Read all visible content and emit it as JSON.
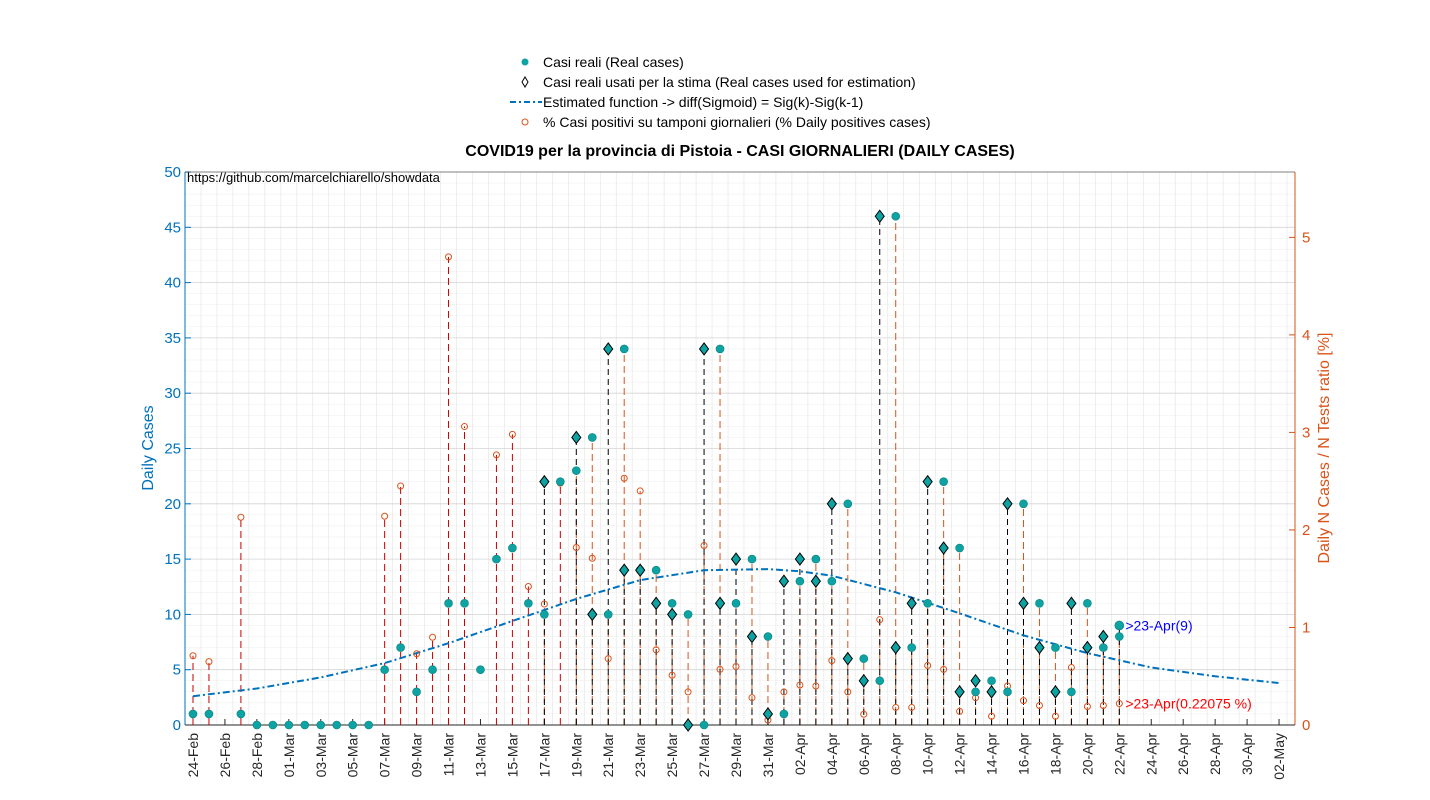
{
  "chart_data": {
    "type": "scatter",
    "title": "COVID19 per la provincia di Pistoia - CASI GIORNALIERI (DAILY CASES)",
    "watermark": "https://github.com/marcelchiarello/showdata",
    "ylabel_left": "Daily Cases",
    "ylabel_right": "Daily N Cases / N Tests ratio [%]",
    "xlabel": "",
    "ylim_left": [
      0,
      50
    ],
    "ylim_right": [
      0,
      5.67
    ],
    "yticks_left": [
      "0",
      "5",
      "10",
      "15",
      "20",
      "25",
      "30",
      "35",
      "40",
      "45",
      "50"
    ],
    "yticks_right": [
      "0",
      "1",
      "2",
      "3",
      "4",
      "5"
    ],
    "x_tick_labels": [
      "24-Feb",
      "26-Feb",
      "28-Feb",
      "01-Mar",
      "03-Mar",
      "05-Mar",
      "07-Mar",
      "09-Mar",
      "11-Mar",
      "13-Mar",
      "15-Mar",
      "17-Mar",
      "19-Mar",
      "21-Mar",
      "23-Mar",
      "25-Mar",
      "27-Mar",
      "29-Mar",
      "31-Mar",
      "02-Apr",
      "04-Apr",
      "06-Apr",
      "08-Apr",
      "10-Apr",
      "12-Apr",
      "14-Apr",
      "16-Apr",
      "18-Apr",
      "20-Apr",
      "22-Apr",
      "24-Apr",
      "26-Apr",
      "28-Apr",
      "30-Apr",
      "02-May"
    ],
    "grid": true,
    "legend_position": "top",
    "colors": {
      "real": "#0DA3A3",
      "estimate_line": "#0072BD",
      "left_axis": "#0072BD",
      "right_axis": "#D95319",
      "ratio_marker": "#D95319",
      "annotation_forecast": "#0000FF",
      "annotation_ratio": "#FF0000"
    },
    "legend": [
      {
        "marker": "filled-circle",
        "label": "Casi reali (Real cases)"
      },
      {
        "marker": "diamond",
        "label": "Casi reali usati per la stima (Real cases used for estimation)"
      },
      {
        "marker": "dash-dot-line",
        "label": "Estimated function -> diff(Sigmoid) = Sig(k)-Sig(k-1)"
      },
      {
        "marker": "open-circle",
        "label": "% Casi positivi su tamponi giornalieri (% Daily positives cases)"
      }
    ],
    "annotations": {
      "forecast": ">23-Apr(9)",
      "ratio": ">23-Apr(0.22075 %)"
    },
    "series": [
      {
        "name": "Casi reali (Real cases)",
        "x_day_index": [
          0,
          1,
          3,
          4,
          5,
          6,
          7,
          8,
          9,
          10,
          11,
          12,
          13,
          14,
          15,
          16,
          17,
          18,
          19,
          20,
          21,
          22,
          23,
          24,
          25,
          26,
          27,
          28,
          29,
          30,
          31,
          32,
          33,
          34,
          35,
          36,
          37,
          38,
          39,
          40,
          41,
          42,
          43,
          44,
          45,
          46,
          47,
          48,
          49,
          50,
          51,
          52,
          53,
          54,
          55,
          56,
          57,
          58
        ],
        "values": [
          1,
          1,
          1,
          0,
          0,
          0,
          0,
          0,
          0,
          0,
          0,
          5,
          7,
          3,
          5,
          11,
          11,
          5,
          15,
          16,
          11,
          10,
          22,
          23,
          26,
          10,
          34,
          14,
          14,
          11,
          10,
          0,
          34,
          11,
          15,
          8,
          1,
          13,
          15,
          13,
          20,
          6,
          4,
          46,
          7,
          11,
          22,
          16,
          3,
          4,
          3,
          20,
          11,
          7,
          3,
          11,
          7,
          8
        ]
      },
      {
        "name": "Casi reali usati per la stima (Real cases used for estimation)",
        "x_day_index": [
          22,
          24,
          25,
          26,
          27,
          28,
          29,
          30,
          31,
          32,
          33,
          34,
          35,
          36,
          37,
          38,
          39,
          40,
          41,
          42,
          43,
          44,
          45,
          46,
          47,
          48,
          49,
          50,
          51,
          52,
          53,
          54,
          55,
          56,
          57,
          58
        ],
        "values": [
          22,
          26,
          10,
          34,
          14,
          14,
          11,
          10,
          0,
          34,
          11,
          15,
          8,
          1,
          13,
          15,
          13,
          20,
          6,
          4,
          46,
          7,
          11,
          22,
          16,
          3,
          4,
          3,
          20,
          11,
          7,
          3,
          11,
          7,
          8,
          9
        ]
      },
      {
        "name": "Estimated function -> diff(Sigmoid) = Sig(k)-Sig(k-1)",
        "x_day_index": [
          0,
          4,
          8,
          12,
          16,
          20,
          24,
          28,
          32,
          36,
          38,
          40,
          44,
          48,
          52,
          56,
          60,
          64,
          68
        ],
        "values": [
          2.6,
          3.3,
          4.3,
          5.6,
          7.4,
          9.4,
          11.4,
          13.1,
          14.0,
          14.1,
          13.9,
          13.5,
          12.0,
          10.1,
          8.1,
          6.5,
          5.2,
          4.4,
          3.8
        ]
      },
      {
        "name": "% Casi positivi su tamponi giornalieri (% Daily positives cases)",
        "axis": "right",
        "x_day_index": [
          0,
          1,
          3,
          12,
          13,
          14,
          15,
          16,
          17,
          19,
          20,
          21,
          22,
          23,
          24,
          25,
          26,
          27,
          28,
          29,
          30,
          31,
          32,
          33,
          34,
          35,
          36,
          37,
          38,
          39,
          40,
          41,
          42,
          43,
          44,
          45,
          46,
          47,
          48,
          49,
          50,
          51,
          52,
          53,
          54,
          55,
          56,
          57,
          58
        ],
        "values": [
          0.71,
          0.65,
          2.13,
          2.14,
          2.45,
          0.73,
          0.9,
          4.8,
          3.06,
          2.77,
          2.98,
          1.42,
          1.24,
          2.48,
          1.82,
          1.71,
          0.68,
          2.53,
          2.4,
          0.77,
          0.51,
          0.34,
          1.84,
          0.57,
          0.6,
          0.28,
          0.05,
          0.34,
          0.41,
          0.4,
          0.66,
          0.34,
          0.11,
          1.08,
          0.18,
          0.18,
          0.61,
          0.57,
          0.14,
          0.28,
          0.09,
          0.4,
          0.25,
          0.2,
          0.09,
          0.59,
          0.19,
          0.2,
          0.22
        ]
      }
    ]
  }
}
